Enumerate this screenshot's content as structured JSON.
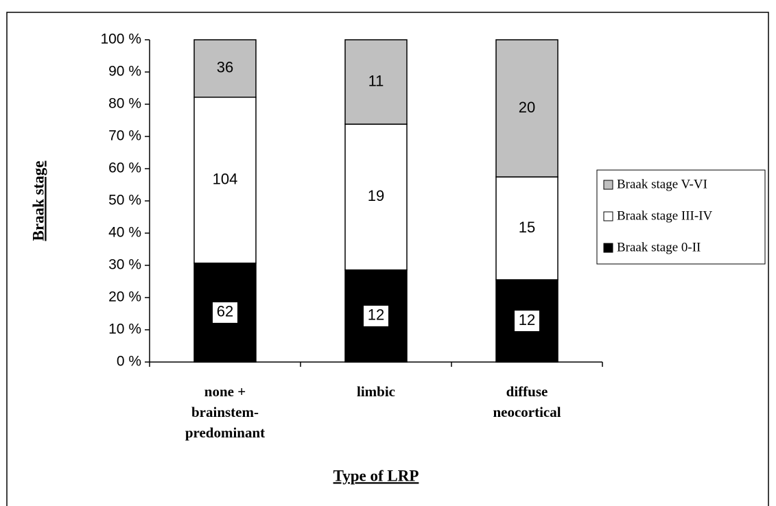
{
  "chart_data": {
    "type": "bar",
    "stacking": "percent",
    "categories": [
      "none + brainstem-predominant",
      "limbic",
      "diffuse neocortical"
    ],
    "series": [
      {
        "name": "Braak stage 0-II",
        "color": "#000000",
        "values": [
          62,
          12,
          12
        ]
      },
      {
        "name": "Braak stage III-IV",
        "color": "#ffffff",
        "values": [
          104,
          19,
          15
        ]
      },
      {
        "name": "Braak stage V-VI",
        "color": "#c0c0c0",
        "values": [
          36,
          11,
          20
        ]
      }
    ],
    "ylim": [
      0,
      100
    ],
    "yticks": [
      {
        "value": 0,
        "label": "0 %"
      },
      {
        "value": 10,
        "label": "10 %"
      },
      {
        "value": 20,
        "label": "20 %"
      },
      {
        "value": 30,
        "label": "30 %"
      },
      {
        "value": 40,
        "label": "40 %"
      },
      {
        "value": 50,
        "label": "50 %"
      },
      {
        "value": 60,
        "label": "60 %"
      },
      {
        "value": 70,
        "label": "70 %"
      },
      {
        "value": 80,
        "label": "80 %"
      },
      {
        "value": 90,
        "label": "90 %"
      },
      {
        "value": 100,
        "label": "100 %"
      }
    ],
    "ylabel": "Braak stage",
    "xlabel": "Type of LRP",
    "legend": "right"
  }
}
